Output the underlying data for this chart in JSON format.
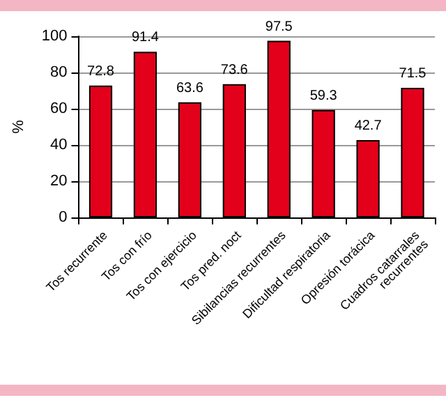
{
  "chart_data": {
    "type": "bar",
    "ylabel": "%",
    "categories": [
      "Tos recurrente",
      "Tos con frío",
      "Tos con ejercicio",
      "Tos pred. noct",
      "Sibilancias recurrentes",
      "Dificultad respiratoria",
      "Opresión torácica",
      "Cuadros catarrales\nrecurrentes"
    ],
    "values": [
      72.8,
      91.4,
      63.6,
      73.6,
      97.5,
      59.3,
      42.7,
      71.5
    ],
    "color": "#e2001a",
    "ylim": [
      0,
      100
    ],
    "yticks": [
      0,
      20,
      40,
      60,
      80,
      100
    ],
    "grid": "y",
    "data_labels": true
  }
}
